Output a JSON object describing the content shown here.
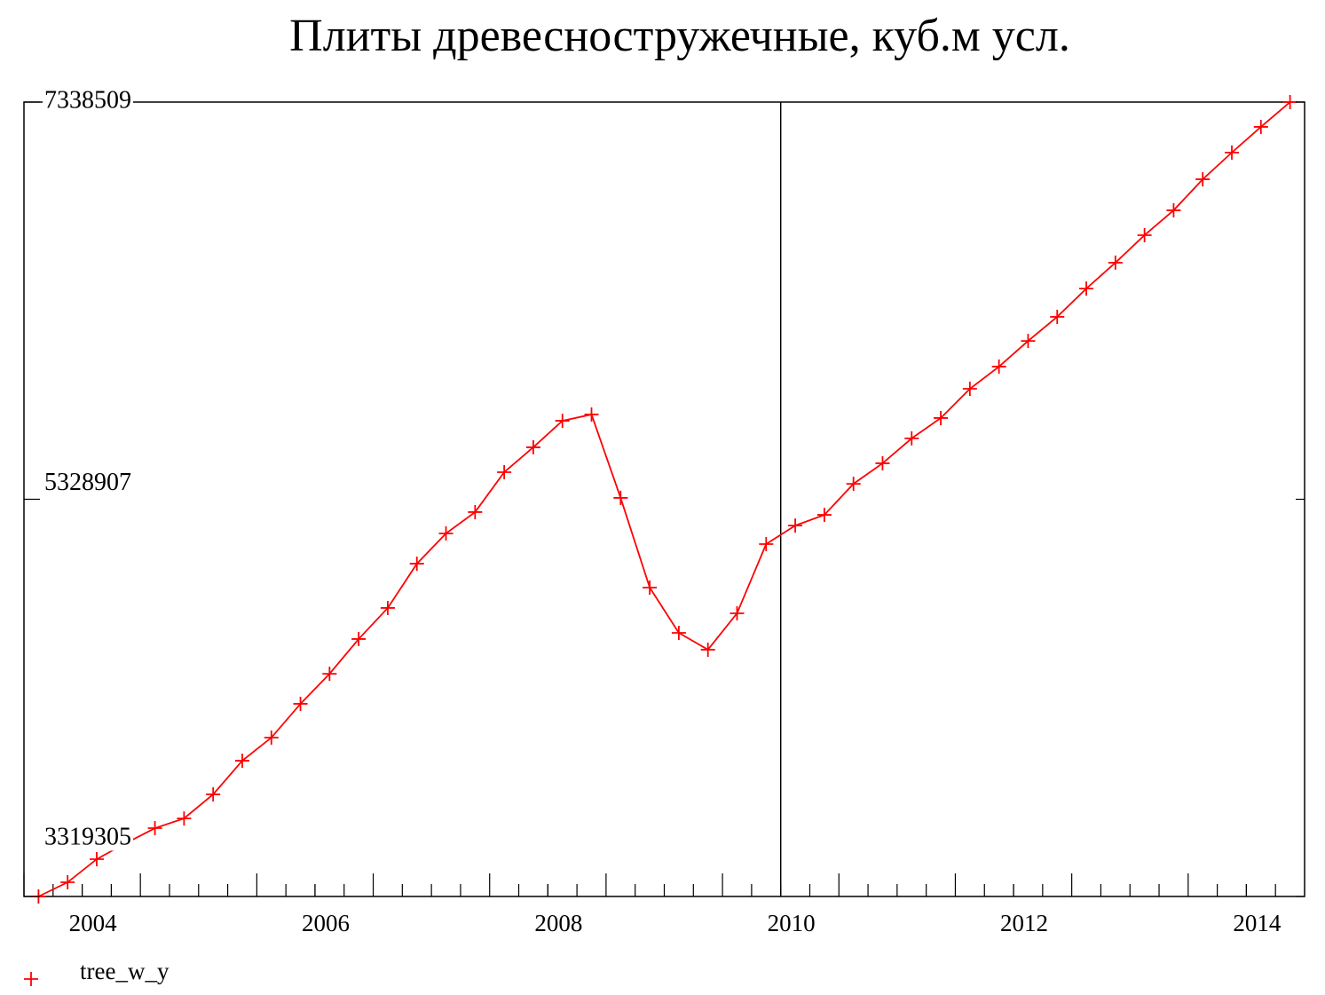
{
  "chart_data": {
    "type": "line",
    "title": "Плиты древесностружечные, куб.м усл.",
    "x": [
      2003.625,
      2003.875,
      2004.125,
      2004.375,
      2004.625,
      2004.875,
      2005.125,
      2005.375,
      2005.625,
      2005.875,
      2006.125,
      2006.375,
      2006.625,
      2006.875,
      2007.125,
      2007.375,
      2007.625,
      2007.875,
      2008.125,
      2008.375,
      2008.625,
      2008.875,
      2009.125,
      2009.375,
      2009.625,
      2009.875,
      2010.125,
      2010.375,
      2010.625,
      2010.875,
      2011.125,
      2011.375,
      2011.625,
      2011.875,
      2012.125,
      2012.375,
      2012.625,
      2012.875,
      2013.125,
      2013.375,
      2013.625,
      2013.875,
      2014.125,
      2014.375
    ],
    "series": [
      {
        "name": "tree_w_y",
        "color": "#ff0000",
        "values": [
          3319305,
          3391000,
          3508000,
          3589000,
          3665000,
          3714000,
          3836000,
          4006000,
          4123000,
          4294000,
          4446000,
          4622000,
          4779000,
          5003000,
          5156000,
          5264000,
          5466000,
          5592000,
          5726000,
          5758000,
          5336000,
          4882000,
          4653000,
          4568000,
          4752000,
          5102000,
          5196000,
          5250000,
          5407000,
          5511000,
          5637000,
          5740000,
          5888000,
          6000000,
          6130000,
          6252000,
          6395000,
          6526000,
          6665000,
          6791000,
          6948000,
          7083000,
          7213000,
          7338509
        ]
      }
    ],
    "xlim": [
      2003.5,
      2014.5
    ],
    "xticks": [
      2004,
      2006,
      2008,
      2010,
      2012,
      2014
    ],
    "ylim": [
      3319305,
      7338509
    ],
    "yticks": [
      3319305,
      5328907,
      7338509
    ],
    "vline": 2010
  }
}
